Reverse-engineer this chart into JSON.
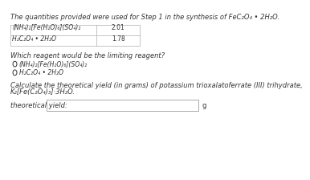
{
  "title": "The quantities provided were used for Step 1 in the synthesis of FeC₂O₄ • 2H₂O.",
  "row1_label": "(NH₄)₂[Fe(H₂O)₆](SO₄)₂",
  "row1_value": "2.01",
  "row2_label": "H₂C₂O₄ • 2H₂O",
  "row2_value": "1.78",
  "question1": "Which reagent would be the limiting reagent?",
  "option1": "(NH₄)₂[Fe(H₂O)₆](SO₄)₂",
  "option2": "H₂C₂O₄ • 2H₂O",
  "question2": "Calculate the theoretical yield (in grams) of potassium trioxalatoferrate (III) trihydrate, K₂[Fe(C₂O₄)₃]·3H₂O.",
  "yield_label": "theoretical yield:",
  "g_label": "g",
  "bg_color": "#ffffff",
  "text_color": "#333333",
  "box_color": "#ffffff",
  "border_color": "#aaaaaa",
  "table_border": "#bbbbbb"
}
